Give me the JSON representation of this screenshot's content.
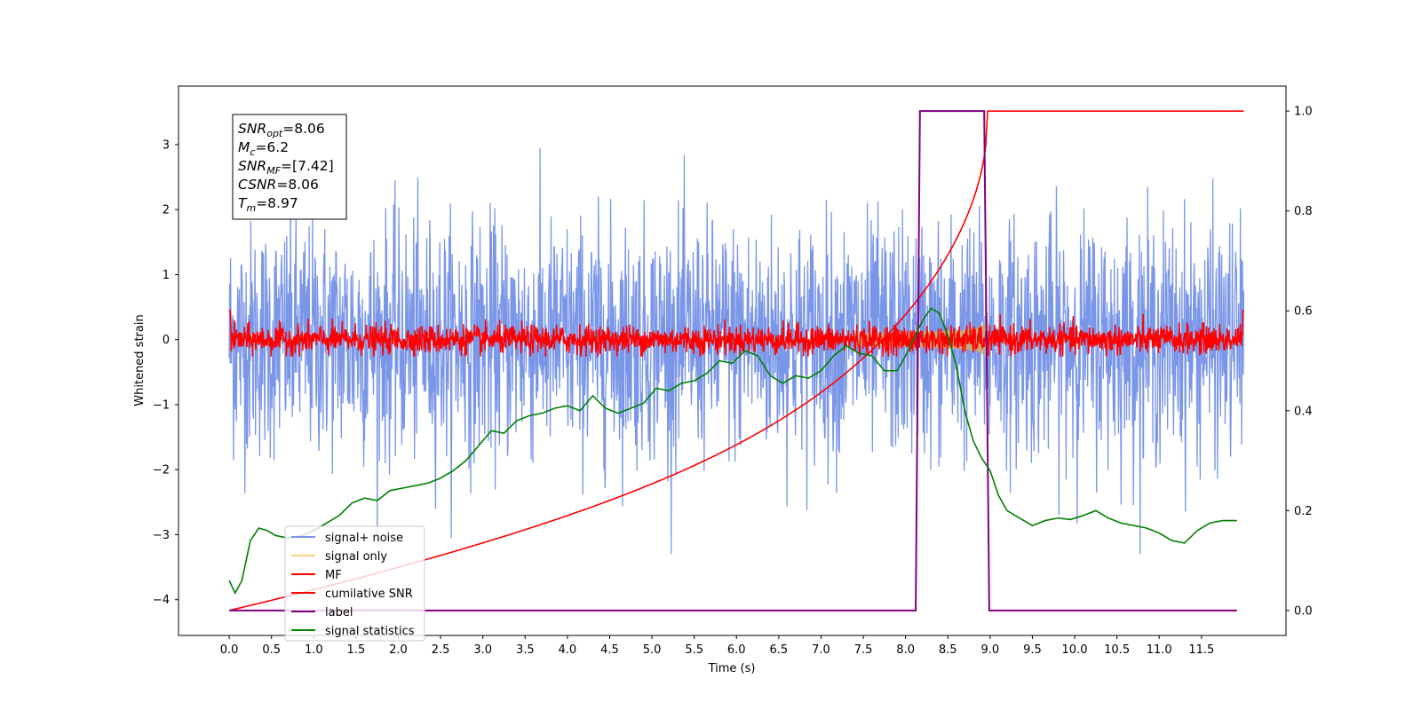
{
  "chart_data": {
    "type": "line",
    "xlabel": "Time (s)",
    "ylabel": "Whitened strain",
    "xlim": [
      -0.6,
      12.5
    ],
    "ylim": [
      -4.55,
      3.9
    ],
    "ylim_right": [
      -0.05,
      1.05
    ],
    "x_ticks": [
      "0.0",
      "0.5",
      "1.0",
      "1.5",
      "2.0",
      "2.5",
      "3.0",
      "3.5",
      "4.0",
      "4.5",
      "5.0",
      "5.5",
      "6.0",
      "6.5",
      "7.0",
      "7.5",
      "8.0",
      "8.5",
      "9.0",
      "9.5",
      "10.0",
      "10.5",
      "11.0",
      "11.5"
    ],
    "y_ticks": [
      "3",
      "2",
      "1",
      "0",
      "−1",
      "−2",
      "−3",
      "−4"
    ],
    "y_ticks_right": [
      "1.0",
      "0.8",
      "0.6",
      "0.4",
      "0.2",
      "0.0"
    ],
    "legend_position": "lower-left",
    "annotation": {
      "lines": [
        {
          "base": "SNR",
          "sub": "opt",
          "value": "=8.06"
        },
        {
          "base": "M",
          "sub": "c",
          "value": "=6.2"
        },
        {
          "base": "SNR",
          "sub": "MF",
          "value": "=[7.42]"
        },
        {
          "base": "CSNR",
          "sub": "",
          "value": "=8.06"
        },
        {
          "base": "T",
          "sub": "m",
          "value": "=8.97"
        }
      ]
    },
    "series": [
      {
        "name": "signal+ noise",
        "color": "#7a96e8",
        "axis": "left",
        "noise_sigma": 0.9,
        "x_range": [
          0.0,
          12.0
        ]
      },
      {
        "name": "signal only",
        "color": "#f7d27c",
        "axis": "left",
        "chirp_peak_time": 8.97,
        "peak_amplitude": 0.45
      },
      {
        "name": "MF",
        "color": "#ff0000",
        "axis": "left",
        "noise_sigma": 0.11,
        "x_range": [
          0.0,
          12.0
        ]
      },
      {
        "name": "cumilative SNR",
        "color": "#ff0000",
        "axis": "right",
        "x": [
          0.0,
          0.5,
          1.0,
          1.5,
          2.0,
          2.5,
          3.0,
          3.5,
          4.0,
          4.5,
          5.0,
          5.5,
          6.0,
          6.5,
          7.0,
          7.5,
          8.0,
          8.3,
          8.6,
          8.8,
          8.97,
          9.0,
          12.0
        ],
        "values": [
          0.0,
          0.04,
          0.067,
          0.09,
          0.11,
          0.13,
          0.15,
          0.17,
          0.19,
          0.21,
          0.235,
          0.26,
          0.29,
          0.33,
          0.38,
          0.44,
          0.52,
          0.59,
          0.71,
          0.83,
          1.0,
          1.0,
          1.0
        ]
      },
      {
        "name": "label",
        "color": "#800080",
        "axis": "right",
        "x": [
          0.0,
          8.12,
          8.17,
          8.93,
          8.99,
          11.92
        ],
        "values": [
          0.0,
          0.0,
          1.0,
          1.0,
          0.0,
          0.0
        ]
      },
      {
        "name": "signal statistics",
        "color": "#008000",
        "axis": "right",
        "x": [
          0.0,
          0.07,
          0.15,
          0.25,
          0.35,
          0.45,
          0.55,
          0.7,
          0.85,
          1.0,
          1.15,
          1.3,
          1.45,
          1.6,
          1.75,
          1.9,
          2.05,
          2.2,
          2.35,
          2.5,
          2.65,
          2.8,
          2.95,
          3.1,
          3.25,
          3.4,
          3.55,
          3.7,
          3.85,
          4.0,
          4.15,
          4.3,
          4.45,
          4.6,
          4.75,
          4.9,
          5.05,
          5.2,
          5.35,
          5.5,
          5.65,
          5.8,
          5.95,
          6.1,
          6.25,
          6.4,
          6.55,
          6.7,
          6.85,
          7.0,
          7.15,
          7.3,
          7.45,
          7.6,
          7.75,
          7.9,
          8.0,
          8.1,
          8.2,
          8.3,
          8.4,
          8.5,
          8.6,
          8.7,
          8.8,
          8.9,
          9.0,
          9.1,
          9.2,
          9.35,
          9.5,
          9.65,
          9.8,
          9.95,
          10.1,
          10.25,
          10.4,
          10.55,
          10.7,
          10.85,
          11.0,
          11.15,
          11.3,
          11.45,
          11.6,
          11.75,
          11.92
        ],
        "values": [
          0.06,
          0.035,
          0.06,
          0.14,
          0.165,
          0.16,
          0.15,
          0.145,
          0.15,
          0.16,
          0.175,
          0.19,
          0.215,
          0.225,
          0.22,
          0.24,
          0.245,
          0.25,
          0.255,
          0.265,
          0.28,
          0.3,
          0.33,
          0.36,
          0.355,
          0.38,
          0.39,
          0.395,
          0.405,
          0.41,
          0.4,
          0.43,
          0.405,
          0.395,
          0.405,
          0.415,
          0.445,
          0.44,
          0.455,
          0.46,
          0.475,
          0.5,
          0.495,
          0.52,
          0.51,
          0.47,
          0.455,
          0.47,
          0.465,
          0.48,
          0.51,
          0.53,
          0.515,
          0.51,
          0.48,
          0.48,
          0.51,
          0.545,
          0.58,
          0.605,
          0.595,
          0.55,
          0.49,
          0.4,
          0.34,
          0.305,
          0.28,
          0.23,
          0.2,
          0.185,
          0.17,
          0.18,
          0.185,
          0.182,
          0.19,
          0.2,
          0.185,
          0.175,
          0.17,
          0.165,
          0.155,
          0.14,
          0.135,
          0.16,
          0.175,
          0.18,
          0.18
        ]
      }
    ]
  }
}
